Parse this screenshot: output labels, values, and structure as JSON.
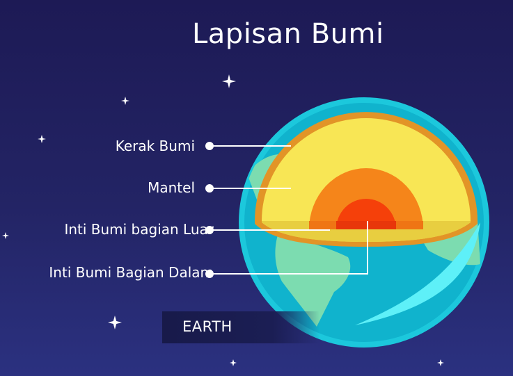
{
  "title": "Lapisan Bumi",
  "layers": [
    {
      "label": "Kerak Bumi",
      "color": "#f0a020"
    },
    {
      "label": "Mantel",
      "color": "#f8e855"
    },
    {
      "label": "Inti Bumi bagian Luar",
      "color": "#f88a10"
    },
    {
      "label": "Inti Bumi Bagian Dalam",
      "color": "#f5400a"
    }
  ],
  "banner": "EARTH",
  "colors": {
    "background": "#1f1e5c",
    "ocean": "#10b8d0",
    "land": "#7cdcb0",
    "lines": "#ffffff"
  }
}
